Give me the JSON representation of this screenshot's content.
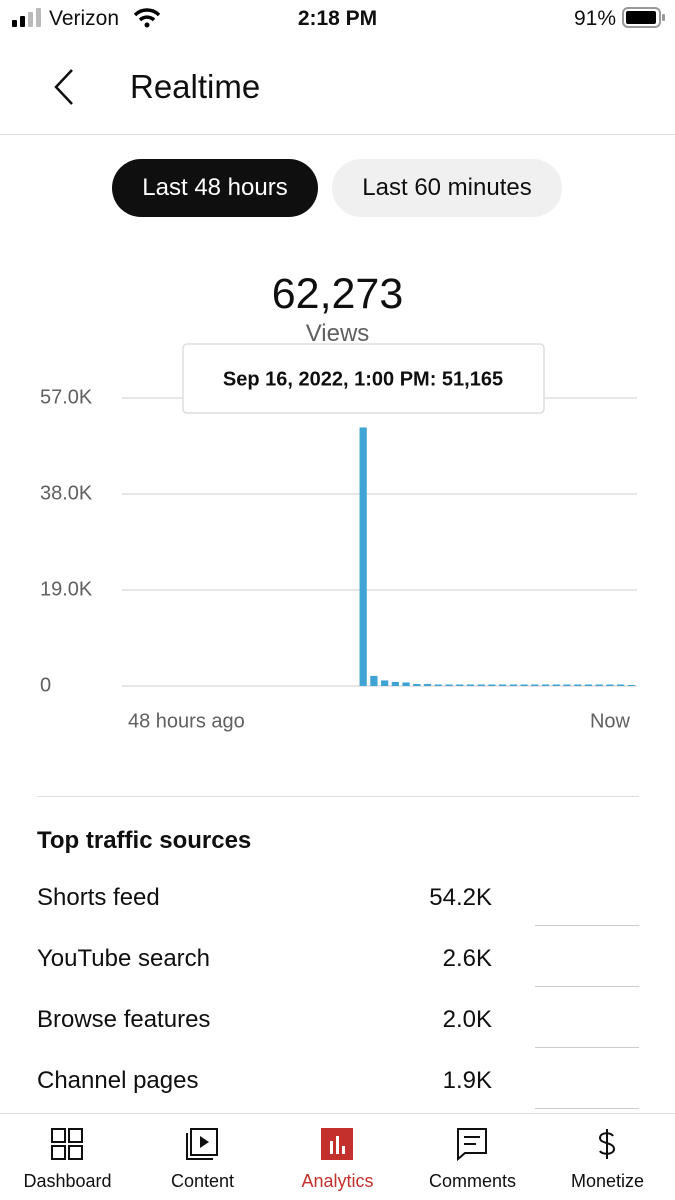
{
  "status_bar": {
    "carrier": "Verizon",
    "time": "2:18 PM",
    "battery": "91%"
  },
  "header": {
    "title": "Realtime"
  },
  "tabs": [
    "Last 48 hours",
    "Last 60 minutes"
  ],
  "summary": {
    "value": "62,273",
    "label": "Views"
  },
  "chart_data": {
    "type": "bar",
    "color": "#3fa3d3",
    "tooltip": "Sep 16, 2022, 1:00 PM: 51,165",
    "x_labels": [
      "48 hours ago",
      "Now"
    ],
    "values": [
      null,
      null,
      null,
      null,
      null,
      null,
      null,
      null,
      null,
      null,
      null,
      null,
      null,
      null,
      null,
      null,
      null,
      null,
      null,
      null,
      null,
      null,
      51165,
      2000,
      1100,
      800,
      700,
      400,
      400,
      300,
      300,
      300,
      300,
      300,
      300,
      300,
      300,
      300,
      300,
      300,
      300,
      300,
      300,
      300,
      300,
      300,
      300,
      200
    ],
    "ylim": [
      0,
      57000
    ],
    "yticks": [
      0,
      {
        "value": 19000,
        "label": "19.0K"
      },
      {
        "value": 38000,
        "label": "38.0K"
      },
      {
        "value": 57000,
        "label": "57.0K"
      }
    ],
    "grid": true
  },
  "traffic": {
    "title": "Top traffic sources",
    "rows": [
      [
        "Shorts feed",
        "54.2K"
      ],
      [
        "YouTube search",
        "2.6K"
      ],
      [
        "Browse features",
        "2.0K"
      ],
      [
        "Channel pages",
        "1.9K"
      ]
    ]
  },
  "nav": [
    "Dashboard",
    "Content",
    "Analytics",
    "Comments",
    "Monetize"
  ]
}
